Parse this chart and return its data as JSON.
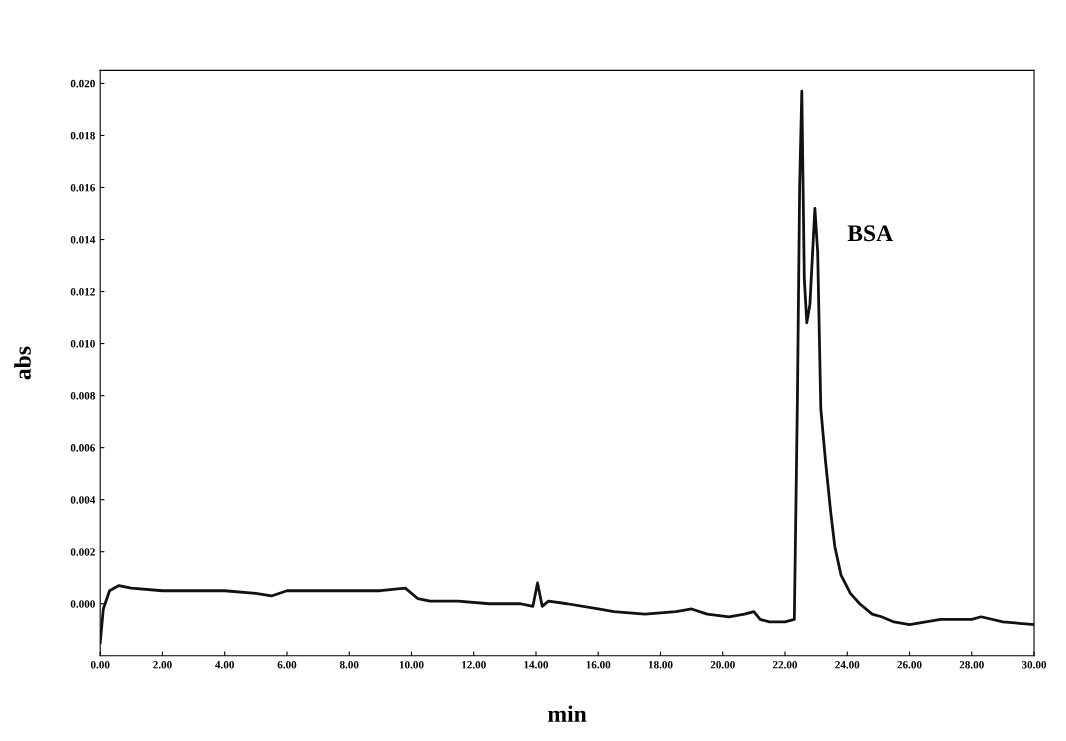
{
  "chart_data": {
    "type": "line",
    "xlabel": "min",
    "ylabel": "abs",
    "x": [
      0,
      0.1,
      0.3,
      0.6,
      1.0,
      2.0,
      3.0,
      4.0,
      5.0,
      5.5,
      6.0,
      7.0,
      8.0,
      9.0,
      9.8,
      10.2,
      10.6,
      11.5,
      12.5,
      13.5,
      13.9,
      14.05,
      14.2,
      14.4,
      15.0,
      16.0,
      16.5,
      17.5,
      18.5,
      19.0,
      19.5,
      20.2,
      20.7,
      21.0,
      21.2,
      21.5,
      22.0,
      22.3,
      22.4,
      22.47,
      22.54,
      22.62,
      22.7,
      22.8,
      22.96,
      23.05,
      23.15,
      23.3,
      23.47,
      23.6,
      23.8,
      24.1,
      24.4,
      24.8,
      25.1,
      25.5,
      26.0,
      27.0,
      28.0,
      28.3,
      29.0,
      30.0
    ],
    "series": [
      {
        "color": "#111111",
        "values": [
          -0.0015,
          -0.0002,
          0.0005,
          0.0007,
          0.0006,
          0.0005,
          0.0005,
          0.0005,
          0.0004,
          0.0003,
          0.0005,
          0.0005,
          0.0005,
          0.0005,
          0.0006,
          0.0002,
          0.0001,
          0.0001,
          0.0,
          0.0,
          -0.0001,
          0.0008,
          -0.0001,
          0.0001,
          0.0,
          -0.0002,
          -0.0003,
          -0.0004,
          -0.0003,
          -0.0002,
          -0.0004,
          -0.0005,
          -0.0004,
          -0.0003,
          -0.0006,
          -0.0007,
          -0.0007,
          -0.0006,
          0.008,
          0.016,
          0.0197,
          0.0125,
          0.0108,
          0.0115,
          0.0152,
          0.0135,
          0.0075,
          0.0055,
          0.0035,
          0.0022,
          0.0011,
          0.0004,
          0.0,
          -0.0004,
          -0.0005,
          -0.0007,
          -0.0008,
          -0.0006,
          -0.0006,
          -0.0005,
          -0.0007,
          -0.0008
        ]
      }
    ],
    "xlim": [
      0,
      30
    ],
    "xticks": [
      {
        "value": 0,
        "label": "0.00"
      },
      {
        "value": 2,
        "label": "2.00"
      },
      {
        "value": 4,
        "label": "4.00"
      },
      {
        "value": 6,
        "label": "6.00"
      },
      {
        "value": 8,
        "label": "8.00"
      },
      {
        "value": 10,
        "label": "10.00"
      },
      {
        "value": 12,
        "label": "12.00"
      },
      {
        "value": 14,
        "label": "14.00"
      },
      {
        "value": 16,
        "label": "16.00"
      },
      {
        "value": 18,
        "label": "18.00"
      },
      {
        "value": 20,
        "label": "20.00"
      },
      {
        "value": 22,
        "label": "22.00"
      },
      {
        "value": 24,
        "label": "24.00"
      },
      {
        "value": 26,
        "label": "26.00"
      },
      {
        "value": 28,
        "label": "28.00"
      },
      {
        "value": 30,
        "label": "30.00"
      }
    ],
    "ylim": [
      -0.002,
      0.0205
    ],
    "yticks": [
      {
        "value": 0,
        "label": "0.000"
      },
      {
        "value": 0.002,
        "label": "0.002"
      },
      {
        "value": 0.004,
        "label": "0.004"
      },
      {
        "value": 0.006,
        "label": "0.006"
      },
      {
        "value": 0.008,
        "label": "0.008"
      },
      {
        "value": 0.01,
        "label": "0.010"
      },
      {
        "value": 0.012,
        "label": "0.012"
      },
      {
        "value": 0.014,
        "label": "0.014"
      },
      {
        "value": 0.016,
        "label": "0.016"
      },
      {
        "value": 0.018,
        "label": "0.018"
      },
      {
        "value": 0.02,
        "label": "0.020"
      }
    ],
    "annotations": [
      "BSA"
    ],
    "grid": false,
    "marker": "none",
    "line_style": "solid"
  }
}
